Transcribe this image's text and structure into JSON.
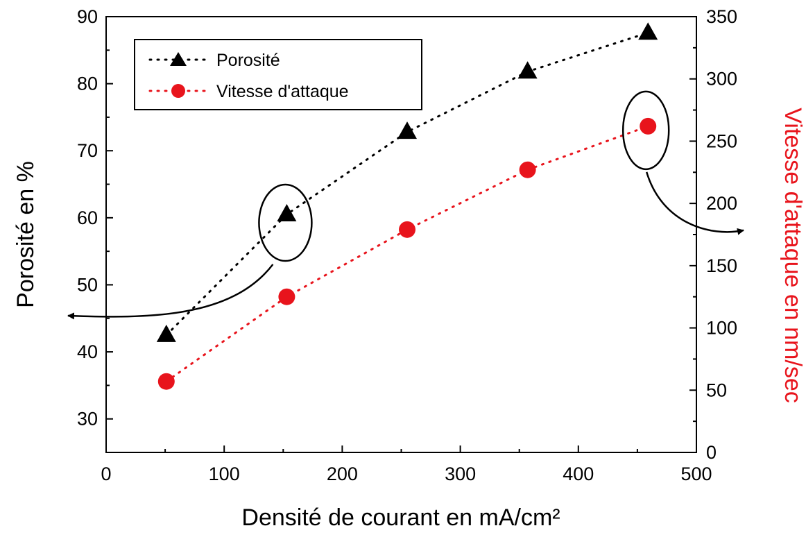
{
  "chart_data": {
    "type": "scatter",
    "title": "",
    "xlabel": "Densité de courant en mA/cm²",
    "ylabel_left": "Porosité en %",
    "ylabel_right": "Vitesse d'attaque en nm/sec",
    "xlim": [
      0,
      500
    ],
    "ylim_left": [
      25,
      90
    ],
    "ylim_right": [
      0,
      350
    ],
    "xticks": [
      "0",
      "100",
      "200",
      "300",
      "400",
      "500"
    ],
    "yticks_left": [
      "30",
      "40",
      "50",
      "60",
      "70",
      "80",
      "90"
    ],
    "yticks_right": [
      "0",
      "50",
      "100",
      "150",
      "200",
      "250",
      "300",
      "350"
    ],
    "grid": false,
    "legend_position": "top-left",
    "series": [
      {
        "name": "Porosité",
        "axis": "left",
        "marker": "triangle",
        "line_style": "dotted",
        "color": "#000000",
        "x": [
          51,
          153,
          255,
          357,
          459
        ],
        "y": [
          42.5,
          60.5,
          72.8,
          81.8,
          87.6
        ]
      },
      {
        "name": "Vitesse d'attaque",
        "axis": "right",
        "marker": "circle",
        "line_style": "dotted",
        "color": "#e8141c",
        "x": [
          51,
          153,
          255,
          357,
          459
        ],
        "y": [
          57,
          125,
          179,
          227,
          262
        ]
      }
    ],
    "annotations": [
      {
        "type": "ellipse-arrow",
        "series": "Porosité",
        "point_index": 1,
        "points_to": "left-axis"
      },
      {
        "type": "ellipse-arrow",
        "series": "Vitesse d'attaque",
        "point_index": 4,
        "points_to": "right-axis"
      }
    ]
  }
}
